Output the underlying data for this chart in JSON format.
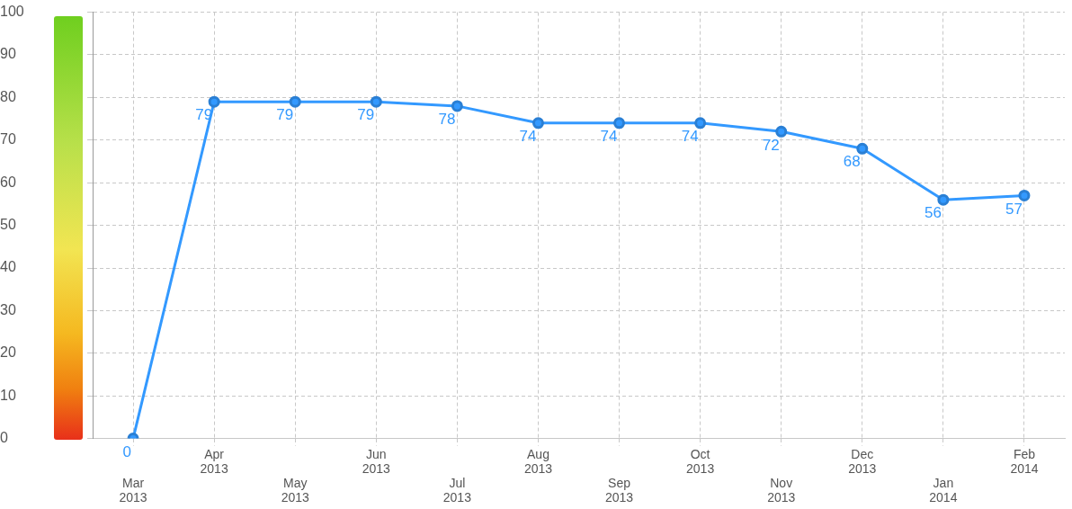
{
  "chart_data": {
    "type": "line",
    "categories": [
      "Mar 2013",
      "Apr 2013",
      "May 2013",
      "Jun 2013",
      "Jul 2013",
      "Aug 2013",
      "Sep 2013",
      "Oct 2013",
      "Nov 2013",
      "Dec 2013",
      "Jan 2014",
      "Feb 2014"
    ],
    "series": [
      {
        "color": "#3399ff",
        "values": [
          0,
          79,
          79,
          79,
          78,
          74,
          74,
          74,
          72,
          68,
          56,
          57
        ]
      }
    ],
    "ylim": [
      0,
      100
    ],
    "yticks": [
      0,
      10,
      20,
      30,
      40,
      50,
      60,
      70,
      80,
      90,
      100
    ],
    "grid": true,
    "legend": false,
    "marker": "circle",
    "line_style": "solid",
    "data_labels": true
  }
}
